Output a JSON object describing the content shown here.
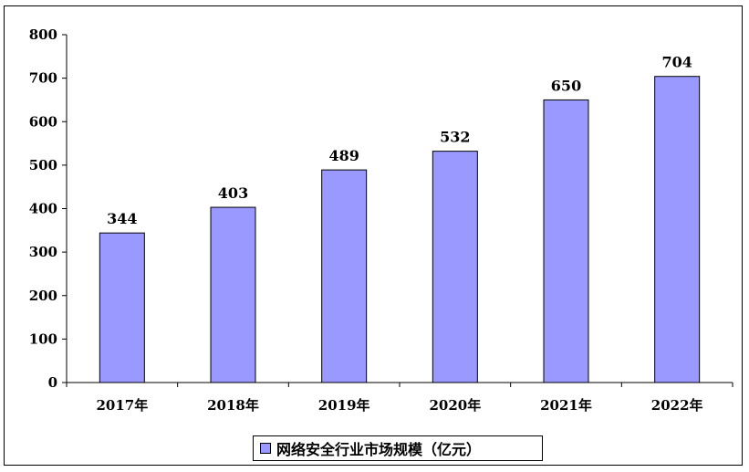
{
  "chart_data": {
    "type": "bar",
    "categories": [
      "2017年",
      "2018年",
      "2019年",
      "2020年",
      "2021年",
      "2022年"
    ],
    "series": [
      {
        "name": "网络安全行业市场规模（亿元）",
        "values": [
          344,
          403,
          489,
          532,
          650,
          704
        ],
        "color": "#9999ff"
      }
    ],
    "title": "",
    "xlabel": "",
    "ylabel": "",
    "ylim": [
      0,
      800
    ],
    "yticks": [
      0,
      100,
      200,
      300,
      400,
      500,
      600,
      700,
      800
    ],
    "ytick_labels": [
      "0",
      "100",
      "200",
      "300",
      "400",
      "500",
      "600",
      "700",
      "800"
    ],
    "data_labels": [
      "344",
      "403",
      "489",
      "532",
      "650",
      "704"
    ],
    "grid": false,
    "legend_position": "bottom"
  }
}
